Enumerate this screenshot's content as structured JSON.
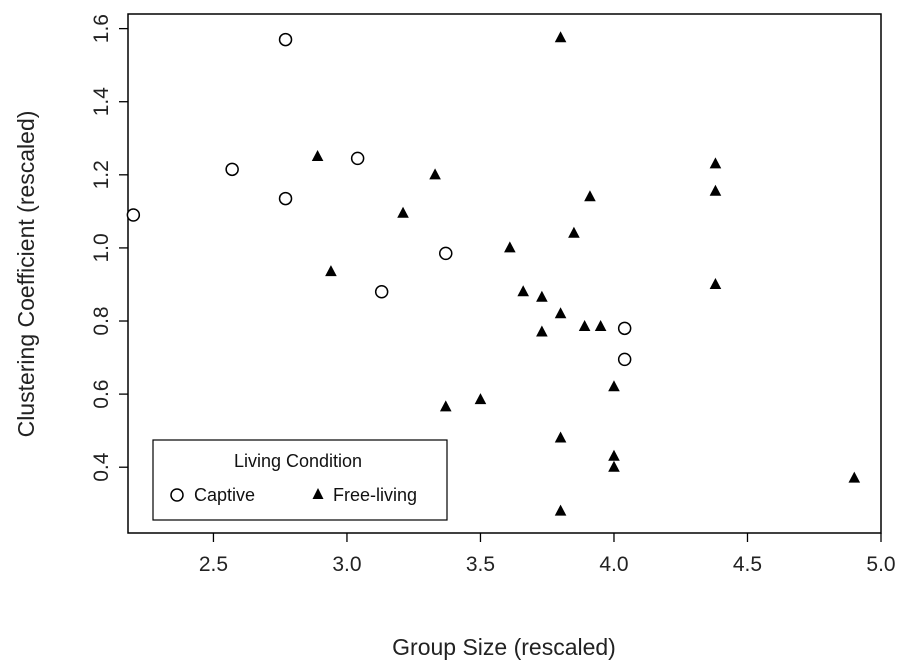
{
  "chart_data": {
    "type": "scatter",
    "xlabel": "Group Size (rescaled)",
    "ylabel": "Clustering Coefficient (rescaled)",
    "xlim": [
      2.18,
      5.0
    ],
    "ylim": [
      0.22,
      1.64
    ],
    "x_ticks": [
      2.5,
      3.0,
      3.5,
      4.0,
      4.5,
      5.0
    ],
    "x_tick_labels": [
      "2.5",
      "3.0",
      "3.5",
      "4.0",
      "4.5",
      "5.0"
    ],
    "y_ticks": [
      0.4,
      0.6,
      0.8,
      1.0,
      1.2,
      1.4,
      1.6
    ],
    "y_tick_labels": [
      "0.4",
      "0.6",
      "0.8",
      "1.0",
      "1.2",
      "1.4",
      "1.6"
    ],
    "grid": false,
    "legend": {
      "title": "Living Condition",
      "position": "bottom-left",
      "entries": [
        "Captive",
        "Free-living"
      ]
    },
    "series": [
      {
        "name": "Captive",
        "marker": "open-circle",
        "points": [
          [
            2.2,
            1.09
          ],
          [
            2.57,
            1.215
          ],
          [
            2.77,
            1.135
          ],
          [
            2.77,
            1.57
          ],
          [
            3.04,
            1.245
          ],
          [
            3.13,
            0.88
          ],
          [
            3.37,
            0.985
          ],
          [
            4.04,
            0.78
          ],
          [
            4.04,
            0.695
          ]
        ]
      },
      {
        "name": "Free-living",
        "marker": "filled-triangle",
        "points": [
          [
            2.89,
            1.25
          ],
          [
            2.94,
            0.935
          ],
          [
            3.21,
            1.095
          ],
          [
            3.33,
            1.2
          ],
          [
            3.37,
            0.565
          ],
          [
            3.5,
            0.585
          ],
          [
            3.61,
            1.0
          ],
          [
            3.66,
            0.88
          ],
          [
            3.73,
            0.865
          ],
          [
            3.73,
            0.77
          ],
          [
            3.8,
            1.575
          ],
          [
            3.8,
            0.82
          ],
          [
            3.8,
            0.48
          ],
          [
            3.8,
            0.28
          ],
          [
            3.85,
            1.04
          ],
          [
            3.89,
            0.785
          ],
          [
            3.91,
            1.14
          ],
          [
            3.95,
            0.785
          ],
          [
            4.0,
            0.62
          ],
          [
            4.0,
            0.43
          ],
          [
            4.0,
            0.4
          ],
          [
            4.38,
            1.23
          ],
          [
            4.38,
            1.155
          ],
          [
            4.38,
            0.9
          ],
          [
            4.9,
            0.37
          ]
        ]
      }
    ]
  }
}
